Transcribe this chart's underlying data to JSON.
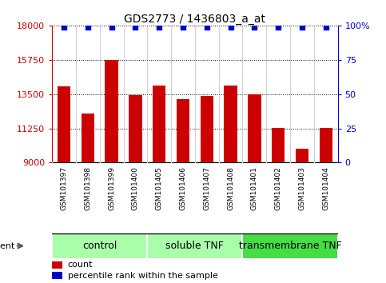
{
  "title": "GDS2773 / 1436803_a_at",
  "samples": [
    "GSM101397",
    "GSM101398",
    "GSM101399",
    "GSM101400",
    "GSM101405",
    "GSM101406",
    "GSM101407",
    "GSM101408",
    "GSM101401",
    "GSM101402",
    "GSM101403",
    "GSM101404"
  ],
  "counts": [
    14000,
    12200,
    15750,
    13450,
    14050,
    13150,
    13350,
    14050,
    13500,
    11300,
    9900,
    11300
  ],
  "bar_color": "#cc0000",
  "dot_color": "#0000cc",
  "ylim_left": [
    9000,
    18000
  ],
  "ylim_right": [
    0,
    100
  ],
  "yticks_left": [
    9000,
    11250,
    13500,
    15750,
    18000
  ],
  "yticks_right": [
    0,
    25,
    50,
    75,
    100
  ],
  "ytick_labels_right": [
    "0",
    "25",
    "50",
    "75",
    "100%"
  ],
  "groups": [
    {
      "label": "control",
      "start": 0,
      "end": 4,
      "color": "#aaffaa"
    },
    {
      "label": "soluble TNF",
      "start": 4,
      "end": 8,
      "color": "#aaffaa"
    },
    {
      "label": "transmembrane TNF",
      "start": 8,
      "end": 12,
      "color": "#44dd44"
    }
  ],
  "agent_label": "agent",
  "legend_count_label": "count",
  "legend_pct_label": "percentile rank within the sample",
  "background_color": "#ffffff",
  "bar_width": 0.55,
  "xticklabel_bg": "#d8d8d8",
  "title_fontsize": 10,
  "axis_fontsize": 8,
  "xticklabel_fontsize": 6.5,
  "group_fontsize": 9
}
